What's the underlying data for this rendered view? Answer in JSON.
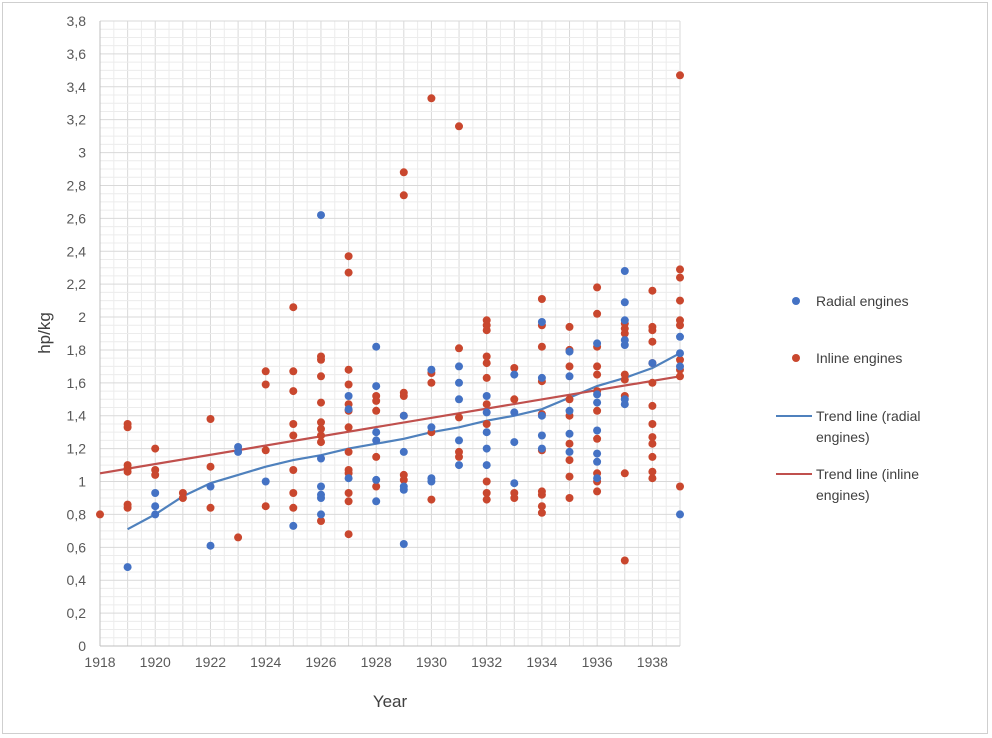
{
  "chart_data": {
    "type": "scatter",
    "title": "",
    "xlabel": "Year",
    "ylabel": "hp/kg",
    "xlim": [
      1918,
      1939
    ],
    "ylim": [
      0,
      3.8
    ],
    "x_ticks": [
      "1918",
      "1920",
      "1922",
      "1924",
      "1926",
      "1928",
      "1930",
      "1932",
      "1934",
      "1936",
      "1938"
    ],
    "y_ticks": [
      "0",
      "0,2",
      "0,4",
      "0,6",
      "0,8",
      "1",
      "1,2",
      "1,4",
      "1,6",
      "1,8",
      "2",
      "2,2",
      "2,4",
      "2,6",
      "2,8",
      "3",
      "3,2",
      "3,4",
      "3,6",
      "3,8"
    ],
    "grid": true,
    "legend_position": "right",
    "series": [
      {
        "name": "Radial engines",
        "kind": "scatter",
        "color": "#4472c4",
        "points": [
          [
            1919,
            0.48
          ],
          [
            1920,
            0.8
          ],
          [
            1920,
            0.85
          ],
          [
            1920,
            0.93
          ],
          [
            1922,
            0.61
          ],
          [
            1922,
            0.97
          ],
          [
            1923,
            1.18
          ],
          [
            1923,
            1.21
          ],
          [
            1924,
            1.0
          ],
          [
            1925,
            0.73
          ],
          [
            1926,
            0.8
          ],
          [
            1926,
            0.9
          ],
          [
            1926,
            0.92
          ],
          [
            1926,
            0.97
          ],
          [
            1926,
            1.14
          ],
          [
            1926,
            2.62
          ],
          [
            1927,
            1.02
          ],
          [
            1927,
            1.44
          ],
          [
            1927,
            1.52
          ],
          [
            1928,
            0.88
          ],
          [
            1928,
            1.01
          ],
          [
            1928,
            1.25
          ],
          [
            1928,
            1.3
          ],
          [
            1928,
            1.58
          ],
          [
            1928,
            1.82
          ],
          [
            1929,
            0.62
          ],
          [
            1929,
            0.95
          ],
          [
            1929,
            0.97
          ],
          [
            1929,
            1.18
          ],
          [
            1929,
            1.4
          ],
          [
            1930,
            1.0
          ],
          [
            1930,
            1.02
          ],
          [
            1930,
            1.33
          ],
          [
            1930,
            1.68
          ],
          [
            1931,
            1.1
          ],
          [
            1931,
            1.25
          ],
          [
            1931,
            1.5
          ],
          [
            1931,
            1.6
          ],
          [
            1931,
            1.7
          ],
          [
            1932,
            1.1
          ],
          [
            1932,
            1.2
          ],
          [
            1932,
            1.3
          ],
          [
            1932,
            1.42
          ],
          [
            1932,
            1.52
          ],
          [
            1933,
            0.99
          ],
          [
            1933,
            1.24
          ],
          [
            1933,
            1.42
          ],
          [
            1933,
            1.65
          ],
          [
            1934,
            1.2
          ],
          [
            1934,
            1.28
          ],
          [
            1934,
            1.4
          ],
          [
            1934,
            1.63
          ],
          [
            1934,
            1.97
          ],
          [
            1935,
            1.18
          ],
          [
            1935,
            1.29
          ],
          [
            1935,
            1.43
          ],
          [
            1935,
            1.64
          ],
          [
            1935,
            1.79
          ],
          [
            1936,
            1.02
          ],
          [
            1936,
            1.12
          ],
          [
            1936,
            1.17
          ],
          [
            1936,
            1.31
          ],
          [
            1936,
            1.48
          ],
          [
            1936,
            1.53
          ],
          [
            1936,
            1.84
          ],
          [
            1937,
            1.47
          ],
          [
            1937,
            1.5
          ],
          [
            1937,
            1.83
          ],
          [
            1937,
            1.86
          ],
          [
            1937,
            1.98
          ],
          [
            1937,
            2.09
          ],
          [
            1937,
            2.28
          ],
          [
            1938,
            1.72
          ],
          [
            1939,
            0.8
          ],
          [
            1939,
            1.7
          ],
          [
            1939,
            1.78
          ],
          [
            1939,
            1.88
          ]
        ]
      },
      {
        "name": "Inline engines",
        "kind": "scatter",
        "color": "#c9472e",
        "points": [
          [
            1918,
            0.8
          ],
          [
            1919,
            0.84
          ],
          [
            1919,
            0.86
          ],
          [
            1919,
            1.06
          ],
          [
            1919,
            1.08
          ],
          [
            1919,
            1.1
          ],
          [
            1919,
            1.33
          ],
          [
            1919,
            1.35
          ],
          [
            1920,
            1.04
          ],
          [
            1920,
            1.07
          ],
          [
            1920,
            1.2
          ],
          [
            1921,
            0.9
          ],
          [
            1921,
            0.93
          ],
          [
            1922,
            0.84
          ],
          [
            1922,
            1.09
          ],
          [
            1922,
            1.38
          ],
          [
            1923,
            0.66
          ],
          [
            1924,
            0.85
          ],
          [
            1924,
            1.19
          ],
          [
            1924,
            1.59
          ],
          [
            1924,
            1.67
          ],
          [
            1925,
            0.84
          ],
          [
            1925,
            0.93
          ],
          [
            1925,
            1.07
          ],
          [
            1925,
            1.28
          ],
          [
            1925,
            1.35
          ],
          [
            1925,
            1.55
          ],
          [
            1925,
            1.67
          ],
          [
            1925,
            2.06
          ],
          [
            1926,
            0.76
          ],
          [
            1926,
            1.24
          ],
          [
            1926,
            1.28
          ],
          [
            1926,
            1.32
          ],
          [
            1926,
            1.36
          ],
          [
            1926,
            1.48
          ],
          [
            1926,
            1.64
          ],
          [
            1926,
            1.74
          ],
          [
            1926,
            1.76
          ],
          [
            1927,
            0.68
          ],
          [
            1927,
            0.88
          ],
          [
            1927,
            0.93
          ],
          [
            1927,
            1.05
          ],
          [
            1927,
            1.07
          ],
          [
            1927,
            1.18
          ],
          [
            1927,
            1.33
          ],
          [
            1927,
            1.43
          ],
          [
            1927,
            1.47
          ],
          [
            1927,
            1.59
          ],
          [
            1927,
            1.68
          ],
          [
            1927,
            2.27
          ],
          [
            1927,
            2.37
          ],
          [
            1928,
            0.97
          ],
          [
            1928,
            1.15
          ],
          [
            1928,
            1.43
          ],
          [
            1928,
            1.49
          ],
          [
            1928,
            1.52
          ],
          [
            1929,
            1.01
          ],
          [
            1929,
            1.04
          ],
          [
            1929,
            1.4
          ],
          [
            1929,
            1.52
          ],
          [
            1929,
            1.54
          ],
          [
            1929,
            2.74
          ],
          [
            1929,
            2.88
          ],
          [
            1930,
            0.89
          ],
          [
            1930,
            1.3
          ],
          [
            1930,
            1.6
          ],
          [
            1930,
            1.66
          ],
          [
            1930,
            3.33
          ],
          [
            1931,
            1.15
          ],
          [
            1931,
            1.18
          ],
          [
            1931,
            1.39
          ],
          [
            1931,
            1.81
          ],
          [
            1931,
            3.16
          ],
          [
            1932,
            0.89
          ],
          [
            1932,
            0.93
          ],
          [
            1932,
            1.0
          ],
          [
            1932,
            1.35
          ],
          [
            1932,
            1.47
          ],
          [
            1932,
            1.63
          ],
          [
            1932,
            1.72
          ],
          [
            1932,
            1.76
          ],
          [
            1932,
            1.92
          ],
          [
            1932,
            1.95
          ],
          [
            1932,
            1.98
          ],
          [
            1933,
            0.9
          ],
          [
            1933,
            0.93
          ],
          [
            1933,
            1.5
          ],
          [
            1933,
            1.69
          ],
          [
            1934,
            0.81
          ],
          [
            1934,
            0.85
          ],
          [
            1934,
            0.92
          ],
          [
            1934,
            0.94
          ],
          [
            1934,
            1.19
          ],
          [
            1934,
            1.41
          ],
          [
            1934,
            1.61
          ],
          [
            1934,
            1.82
          ],
          [
            1934,
            1.95
          ],
          [
            1934,
            2.11
          ],
          [
            1935,
            0.9
          ],
          [
            1935,
            1.03
          ],
          [
            1935,
            1.13
          ],
          [
            1935,
            1.23
          ],
          [
            1935,
            1.4
          ],
          [
            1935,
            1.5
          ],
          [
            1935,
            1.7
          ],
          [
            1935,
            1.8
          ],
          [
            1935,
            1.94
          ],
          [
            1936,
            0.94
          ],
          [
            1936,
            1.0
          ],
          [
            1936,
            1.05
          ],
          [
            1936,
            1.26
          ],
          [
            1936,
            1.43
          ],
          [
            1936,
            1.55
          ],
          [
            1936,
            1.65
          ],
          [
            1936,
            1.7
          ],
          [
            1936,
            1.82
          ],
          [
            1936,
            2.02
          ],
          [
            1936,
            2.18
          ],
          [
            1937,
            0.52
          ],
          [
            1937,
            1.05
          ],
          [
            1937,
            1.52
          ],
          [
            1937,
            1.62
          ],
          [
            1937,
            1.65
          ],
          [
            1937,
            1.9
          ],
          [
            1937,
            1.93
          ],
          [
            1937,
            1.96
          ],
          [
            1938,
            1.02
          ],
          [
            1938,
            1.06
          ],
          [
            1938,
            1.15
          ],
          [
            1938,
            1.23
          ],
          [
            1938,
            1.27
          ],
          [
            1938,
            1.35
          ],
          [
            1938,
            1.46
          ],
          [
            1938,
            1.6
          ],
          [
            1938,
            1.72
          ],
          [
            1938,
            1.85
          ],
          [
            1938,
            1.92
          ],
          [
            1938,
            1.94
          ],
          [
            1938,
            2.16
          ],
          [
            1939,
            0.97
          ],
          [
            1939,
            1.64
          ],
          [
            1939,
            1.68
          ],
          [
            1939,
            1.74
          ],
          [
            1939,
            1.95
          ],
          [
            1939,
            1.98
          ],
          [
            1939,
            2.1
          ],
          [
            1939,
            2.24
          ],
          [
            1939,
            2.29
          ],
          [
            1939,
            3.47
          ]
        ]
      },
      {
        "name": "Trend line (radial engines)",
        "kind": "line",
        "color": "#4f81bd",
        "points": [
          [
            1919,
            0.71
          ],
          [
            1920,
            0.8
          ],
          [
            1921,
            0.91
          ],
          [
            1922,
            0.99
          ],
          [
            1923,
            1.04
          ],
          [
            1924,
            1.09
          ],
          [
            1925,
            1.13
          ],
          [
            1926,
            1.16
          ],
          [
            1927,
            1.2
          ],
          [
            1928,
            1.23
          ],
          [
            1929,
            1.26
          ],
          [
            1930,
            1.3
          ],
          [
            1931,
            1.33
          ],
          [
            1932,
            1.37
          ],
          [
            1933,
            1.4
          ],
          [
            1934,
            1.44
          ],
          [
            1935,
            1.51
          ],
          [
            1936,
            1.58
          ],
          [
            1937,
            1.63
          ],
          [
            1938,
            1.69
          ],
          [
            1939,
            1.78
          ]
        ]
      },
      {
        "name": "Trend line (inline engines)",
        "kind": "line",
        "color": "#c0504d",
        "points": [
          [
            1918,
            1.05
          ],
          [
            1939,
            1.64
          ]
        ]
      }
    ]
  }
}
